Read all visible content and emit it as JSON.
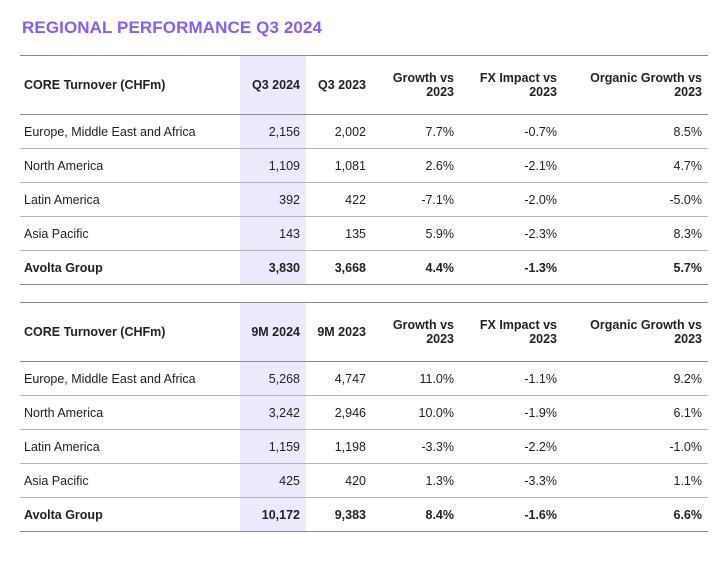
{
  "title": "REGIONAL PERFORMANCE Q3 2024",
  "tables": [
    {
      "headers": {
        "label": "CORE Turnover (CHFm)",
        "current": "Q3 2024",
        "previous": "Q3 2023",
        "growth_l1": "Growth vs",
        "growth_l2": "2023",
        "fx_l1": "FX Impact vs",
        "fx_l2": "2023",
        "organic_l1": "Organic Growth vs",
        "organic_l2": "2023"
      },
      "rows": [
        {
          "region": "Europe, Middle East and Africa",
          "current": "2,156",
          "previous": "2,002",
          "growth": "7.7%",
          "fx": "-0.7%",
          "organic": "8.5%"
        },
        {
          "region": "North America",
          "current": "1,109",
          "previous": "1,081",
          "growth": "2.6%",
          "fx": "-2.1%",
          "organic": "4.7%"
        },
        {
          "region": "Latin America",
          "current": "392",
          "previous": "422",
          "growth": "-7.1%",
          "fx": "-2.0%",
          "organic": "-5.0%"
        },
        {
          "region": "Asia Pacific",
          "current": "143",
          "previous": "135",
          "growth": "5.9%",
          "fx": "-2.3%",
          "organic": "8.3%"
        },
        {
          "region": "Avolta Group",
          "current": "3,830",
          "previous": "3,668",
          "growth": "4.4%",
          "fx": "-1.3%",
          "organic": "5.7%"
        }
      ]
    },
    {
      "headers": {
        "label": "CORE Turnover (CHFm)",
        "current": "9M 2024",
        "previous": "9M 2023",
        "growth_l1": "Growth vs",
        "growth_l2": "2023",
        "fx_l1": "FX Impact vs",
        "fx_l2": "2023",
        "organic_l1": "Organic Growth vs",
        "organic_l2": "2023"
      },
      "rows": [
        {
          "region": "Europe, Middle East and Africa",
          "current": "5,268",
          "previous": "4,747",
          "growth": "11.0%",
          "fx": "-1.1%",
          "organic": "9.2%"
        },
        {
          "region": "North America",
          "current": "3,242",
          "previous": "2,946",
          "growth": "10.0%",
          "fx": "-1.9%",
          "organic": "6.1%"
        },
        {
          "region": "Latin America",
          "current": "1,159",
          "previous": "1,198",
          "growth": "-3.3%",
          "fx": "-2.2%",
          "organic": "-1.0%"
        },
        {
          "region": "Asia Pacific",
          "current": "425",
          "previous": "420",
          "growth": "1.3%",
          "fx": "-3.3%",
          "organic": "1.1%"
        },
        {
          "region": "Avolta Group",
          "current": "10,172",
          "previous": "9,383",
          "growth": "8.4%",
          "fx": "-1.6%",
          "organic": "6.6%"
        }
      ]
    }
  ],
  "colors": {
    "title": "#8b5cf6",
    "highlight_column": "#ede8fb",
    "text": "#222222",
    "rule": "#8a8a8a"
  }
}
